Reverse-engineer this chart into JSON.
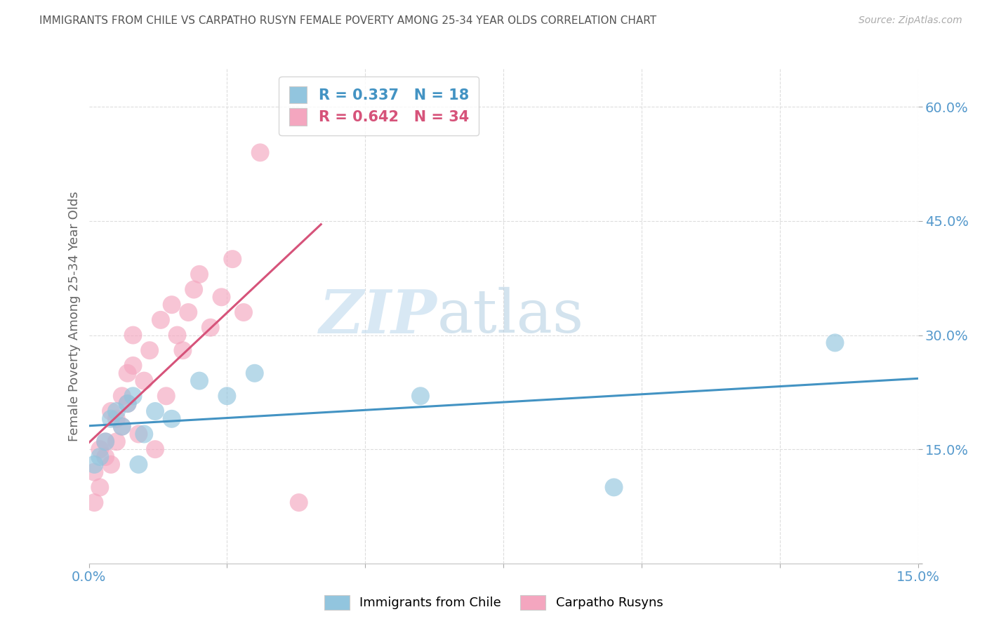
{
  "title": "IMMIGRANTS FROM CHILE VS CARPATHO RUSYN FEMALE POVERTY AMONG 25-34 YEAR OLDS CORRELATION CHART",
  "source": "Source: ZipAtlas.com",
  "ylabel": "Female Poverty Among 25-34 Year Olds",
  "xlim": [
    0.0,
    0.15
  ],
  "ylim": [
    0.0,
    0.65
  ],
  "xticks": [
    0.0,
    0.025,
    0.05,
    0.075,
    0.1,
    0.125,
    0.15
  ],
  "xtick_labels": [
    "0.0%",
    "",
    "",
    "",
    "",
    "",
    "15.0%"
  ],
  "yticks": [
    0.0,
    0.15,
    0.3,
    0.45,
    0.6
  ],
  "ytick_labels": [
    "",
    "15.0%",
    "30.0%",
    "45.0%",
    "60.0%"
  ],
  "blue_R": 0.337,
  "blue_N": 18,
  "pink_R": 0.642,
  "pink_N": 34,
  "blue_color": "#92c5de",
  "pink_color": "#f4a6bf",
  "blue_line_color": "#4393c3",
  "pink_line_color": "#d6537a",
  "blue_label": "Immigrants from Chile",
  "pink_label": "Carpatho Rusyns",
  "watermark_zip": "ZIP",
  "watermark_atlas": "atlas",
  "blue_points_x": [
    0.001,
    0.002,
    0.003,
    0.004,
    0.005,
    0.006,
    0.007,
    0.008,
    0.009,
    0.01,
    0.012,
    0.015,
    0.02,
    0.025,
    0.03,
    0.06,
    0.095,
    0.135
  ],
  "blue_points_y": [
    0.13,
    0.14,
    0.16,
    0.19,
    0.2,
    0.18,
    0.21,
    0.22,
    0.13,
    0.17,
    0.2,
    0.19,
    0.24,
    0.22,
    0.25,
    0.22,
    0.1,
    0.29
  ],
  "pink_points_x": [
    0.001,
    0.001,
    0.002,
    0.002,
    0.003,
    0.003,
    0.004,
    0.004,
    0.005,
    0.005,
    0.006,
    0.006,
    0.007,
    0.007,
    0.008,
    0.008,
    0.009,
    0.01,
    0.011,
    0.012,
    0.013,
    0.014,
    0.015,
    0.016,
    0.017,
    0.018,
    0.019,
    0.02,
    0.022,
    0.024,
    0.026,
    0.028,
    0.031,
    0.038
  ],
  "pink_points_y": [
    0.12,
    0.08,
    0.15,
    0.1,
    0.16,
    0.14,
    0.2,
    0.13,
    0.19,
    0.16,
    0.22,
    0.18,
    0.25,
    0.21,
    0.26,
    0.3,
    0.17,
    0.24,
    0.28,
    0.15,
    0.32,
    0.22,
    0.34,
    0.3,
    0.28,
    0.33,
    0.36,
    0.38,
    0.31,
    0.35,
    0.4,
    0.33,
    0.54,
    0.08
  ],
  "background_color": "#ffffff",
  "grid_color": "#dddddd",
  "title_color": "#555555",
  "axis_label_color": "#666666",
  "tick_color": "#5599cc"
}
